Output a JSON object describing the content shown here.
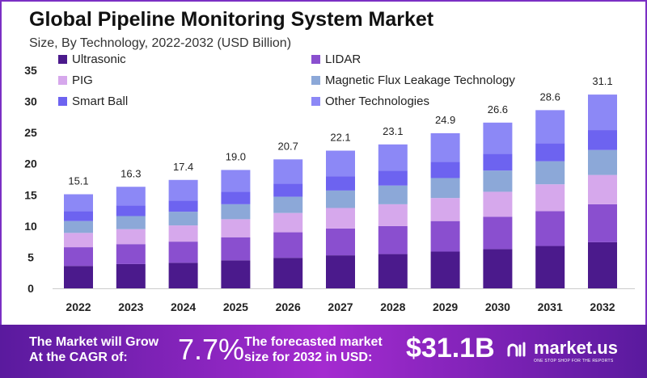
{
  "chart_data": {
    "type": "bar",
    "stacked": true,
    "title": "Global Pipeline Monitoring System Market",
    "subtitle": "Size, By Technology, 2022-2032 (USD Billion)",
    "xlabel": "",
    "ylabel": "",
    "ylim": [
      0,
      35
    ],
    "yticks": [
      0,
      5,
      10,
      15,
      20,
      25,
      30,
      35
    ],
    "grid": false,
    "legend_position": "top-left",
    "categories": [
      "2022",
      "2023",
      "2024",
      "2025",
      "2026",
      "2027",
      "2028",
      "2029",
      "2030",
      "2031",
      "2032"
    ],
    "totals": [
      "15.1",
      "16.3",
      "17.4",
      "19.0",
      "20.7",
      "22.1",
      "23.1",
      "24.9",
      "26.6",
      "28.6",
      "31.1"
    ],
    "series": [
      {
        "name": "Ultrasonic",
        "color": "#4b1a8c",
        "values": [
          3.6,
          3.9,
          4.1,
          4.5,
          4.9,
          5.3,
          5.5,
          5.9,
          6.3,
          6.8,
          7.4
        ]
      },
      {
        "name": "LIDAR",
        "color": "#8a4fcf",
        "values": [
          3.0,
          3.2,
          3.4,
          3.7,
          4.1,
          4.3,
          4.5,
          4.9,
          5.2,
          5.6,
          6.1
        ]
      },
      {
        "name": "PIG",
        "color": "#d6a8ec",
        "values": [
          2.3,
          2.4,
          2.6,
          2.9,
          3.1,
          3.3,
          3.5,
          3.7,
          4.0,
          4.3,
          4.7
        ]
      },
      {
        "name": "Magnetic Flux Leakage Technology",
        "color": "#8ca8d8",
        "values": [
          1.9,
          2.1,
          2.2,
          2.4,
          2.6,
          2.8,
          3.0,
          3.2,
          3.4,
          3.7,
          4.0
        ]
      },
      {
        "name": "Smart Ball",
        "color": "#6d63f0",
        "values": [
          1.6,
          1.7,
          1.8,
          2.0,
          2.1,
          2.3,
          2.4,
          2.6,
          2.7,
          2.9,
          3.2
        ]
      },
      {
        "name": "Other Technologies",
        "color": "#8c88f6",
        "values": [
          2.7,
          3.0,
          3.3,
          3.5,
          3.9,
          4.1,
          4.2,
          4.6,
          5.0,
          5.3,
          5.7
        ]
      }
    ]
  },
  "footer": {
    "cagr_label": "The Market will Grow At the CAGR of:",
    "cagr_value": "7.7%",
    "forecast_label": "The forecasted market size for 2032 in USD:",
    "forecast_value": "$31.1B",
    "logo_name": "market.us",
    "logo_tagline": "ONE STOP SHOP FOR THE REPORTS"
  }
}
